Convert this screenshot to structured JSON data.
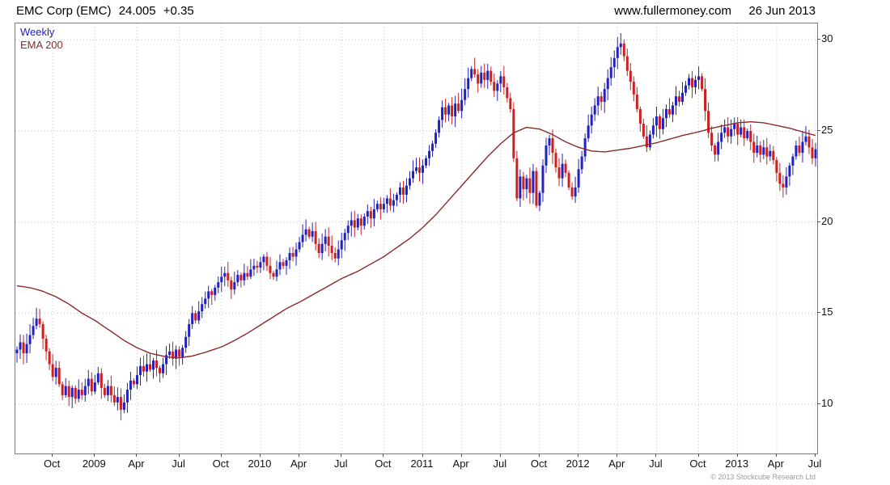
{
  "header": {
    "title": "EMC Corp (EMC)",
    "price": "24.005",
    "change": "+0.35",
    "website": "www.fullermoney.com",
    "date": "26 Jun 2013"
  },
  "legend": {
    "timeframe": "Weekly",
    "overlay": "EMA 200"
  },
  "footer": {
    "copyright": "© 2013 Stockcube Research Ltd"
  },
  "colors": {
    "up": "#2121c0",
    "down": "#cc1f1f",
    "ema": "#8b2a2a",
    "grid": "#c6c6c6",
    "axis_text": "#111111",
    "border": "#7d7d7d"
  },
  "chart_data": {
    "type": "candlestick",
    "title": "EMC Corp (EMC) weekly candles with 200-period EMA",
    "x_range": "Aug 2008 - Jul 2013",
    "ylim": [
      7.3,
      30.9
    ],
    "y_ticks": [
      10,
      15,
      20,
      25,
      30
    ],
    "x_ticks": [
      {
        "i": 11,
        "label": "Oct"
      },
      {
        "i": 24,
        "label": "2009"
      },
      {
        "i": 37,
        "label": "Apr"
      },
      {
        "i": 50,
        "label": "Jul"
      },
      {
        "i": 63,
        "label": "Oct"
      },
      {
        "i": 75,
        "label": "2010"
      },
      {
        "i": 87,
        "label": "Apr"
      },
      {
        "i": 100,
        "label": "Jul"
      },
      {
        "i": 113,
        "label": "Oct"
      },
      {
        "i": 125,
        "label": "2011"
      },
      {
        "i": 137,
        "label": "Apr"
      },
      {
        "i": 149,
        "label": "Jul"
      },
      {
        "i": 161,
        "label": "Oct"
      },
      {
        "i": 173,
        "label": "2012"
      },
      {
        "i": 185,
        "label": "Apr"
      },
      {
        "i": 197,
        "label": "Jul"
      },
      {
        "i": 210,
        "label": "Oct"
      },
      {
        "i": 222,
        "label": "2013"
      },
      {
        "i": 234,
        "label": "Apr"
      },
      {
        "i": 246,
        "label": "Jul"
      }
    ],
    "first_open": 12.8,
    "weekly_closes": [
      13.0,
      13.4,
      12.8,
      13.3,
      13.8,
      14.3,
      14.7,
      14.4,
      13.6,
      12.9,
      12.2,
      11.5,
      12.0,
      11.1,
      10.5,
      11.0,
      10.4,
      10.9,
      10.3,
      10.8,
      10.5,
      11.0,
      11.4,
      10.7,
      11.2,
      11.7,
      10.9,
      10.5,
      11.0,
      10.5,
      10.1,
      10.4,
      9.7,
      10.1,
      10.8,
      11.3,
      11.1,
      11.6,
      12.1,
      11.8,
      12.2,
      11.9,
      12.4,
      12.0,
      11.7,
      12.2,
      12.7,
      12.9,
      12.5,
      13.0,
      12.6,
      13.1,
      13.7,
      14.4,
      15.0,
      14.6,
      15.1,
      15.5,
      15.8,
      16.2,
      16.0,
      16.4,
      16.7,
      17.0,
      17.2,
      16.8,
      16.3,
      16.7,
      17.1,
      16.8,
      17.2,
      17.0,
      17.4,
      17.6,
      17.5,
      17.8,
      18.1,
      17.6,
      17.2,
      17.0,
      17.4,
      17.8,
      17.6,
      17.9,
      18.3,
      18.1,
      18.5,
      18.9,
      19.3,
      19.6,
      19.2,
      19.5,
      18.8,
      18.3,
      18.8,
      19.2,
      18.7,
      18.3,
      18.0,
      18.5,
      19.0,
      19.4,
      19.8,
      20.1,
      19.7,
      20.2,
      19.8,
      20.3,
      20.6,
      20.2,
      20.7,
      21.0,
      20.7,
      21.0,
      21.3,
      20.9,
      21.2,
      21.5,
      21.9,
      21.5,
      22.0,
      22.4,
      22.8,
      23.0,
      22.7,
      23.1,
      23.5,
      23.9,
      24.3,
      24.9,
      25.6,
      26.3,
      25.9,
      26.4,
      25.8,
      26.5,
      26.1,
      26.7,
      27.3,
      27.9,
      28.4,
      28.1,
      27.6,
      28.2,
      27.8,
      28.3,
      27.7,
      27.2,
      27.6,
      28.0,
      27.4,
      26.8,
      26.2,
      23.5,
      21.3,
      22.5,
      21.8,
      22.4,
      21.6,
      22.8,
      20.9,
      21.6,
      23.1,
      24.2,
      24.6,
      23.8,
      23.0,
      22.4,
      23.2,
      22.7,
      21.9,
      21.4,
      21.9,
      22.9,
      23.6,
      24.6,
      25.3,
      25.9,
      26.4,
      26.9,
      26.6,
      27.3,
      27.9,
      28.5,
      29.0,
      29.6,
      29.8,
      29.1,
      28.3,
      27.7,
      27.0,
      26.2,
      25.4,
      24.7,
      24.1,
      24.8,
      25.3,
      25.8,
      25.1,
      25.7,
      26.2,
      25.9,
      26.4,
      26.9,
      26.6,
      27.1,
      27.5,
      27.9,
      27.4,
      27.8,
      28.0,
      27.3,
      26.1,
      24.9,
      24.2,
      23.7,
      24.4,
      24.9,
      25.2,
      24.7,
      25.1,
      25.4,
      24.8,
      25.2,
      24.6,
      25.0,
      24.4,
      23.8,
      24.2,
      23.7,
      24.1,
      23.6,
      23.9,
      23.4,
      22.7,
      22.1,
      21.9,
      22.5,
      23.1,
      23.6,
      24.2,
      23.8,
      24.4,
      24.7,
      24.1,
      23.5,
      24.0
    ],
    "ema_anchors": [
      [
        0,
        16.5
      ],
      [
        4,
        16.4
      ],
      [
        8,
        16.2
      ],
      [
        12,
        15.9
      ],
      [
        16,
        15.5
      ],
      [
        20,
        15.0
      ],
      [
        24,
        14.6
      ],
      [
        29,
        14.0
      ],
      [
        33,
        13.5
      ],
      [
        37,
        13.1
      ],
      [
        41,
        12.8
      ],
      [
        46,
        12.6
      ],
      [
        50,
        12.55
      ],
      [
        54,
        12.65
      ],
      [
        58,
        12.85
      ],
      [
        63,
        13.15
      ],
      [
        67,
        13.5
      ],
      [
        71,
        13.9
      ],
      [
        75,
        14.35
      ],
      [
        79,
        14.8
      ],
      [
        83,
        15.25
      ],
      [
        88,
        15.7
      ],
      [
        92,
        16.1
      ],
      [
        96,
        16.5
      ],
      [
        100,
        16.9
      ],
      [
        105,
        17.3
      ],
      [
        109,
        17.7
      ],
      [
        113,
        18.1
      ],
      [
        117,
        18.6
      ],
      [
        121,
        19.1
      ],
      [
        125,
        19.7
      ],
      [
        129,
        20.4
      ],
      [
        133,
        21.2
      ],
      [
        137,
        22.0
      ],
      [
        141,
        22.8
      ],
      [
        145,
        23.6
      ],
      [
        149,
        24.3
      ],
      [
        153,
        24.9
      ],
      [
        157,
        25.2
      ],
      [
        161,
        25.1
      ],
      [
        165,
        24.8
      ],
      [
        169,
        24.4
      ],
      [
        173,
        24.1
      ],
      [
        177,
        23.9
      ],
      [
        181,
        23.85
      ],
      [
        185,
        23.95
      ],
      [
        189,
        24.05
      ],
      [
        193,
        24.2
      ],
      [
        197,
        24.35
      ],
      [
        201,
        24.55
      ],
      [
        205,
        24.75
      ],
      [
        210,
        24.95
      ],
      [
        214,
        25.15
      ],
      [
        218,
        25.3
      ],
      [
        222,
        25.45
      ],
      [
        226,
        25.5
      ],
      [
        230,
        25.45
      ],
      [
        234,
        25.3
      ],
      [
        238,
        25.15
      ],
      [
        242,
        24.95
      ],
      [
        246,
        24.75
      ]
    ]
  }
}
